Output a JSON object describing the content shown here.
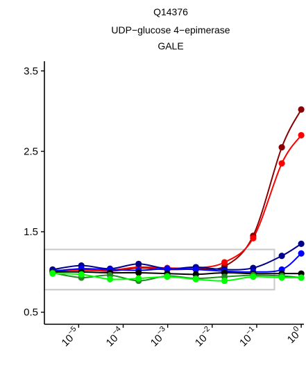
{
  "chart_data": {
    "type": "line",
    "title_lines": [
      "Q14376",
      "UDP−glucose 4−epimerase",
      "GALE"
    ],
    "xlabel": "",
    "ylabel": "",
    "x_scale": "log10",
    "xlim": [
      1.7e-06,
      1.15
    ],
    "ylim": [
      0.35,
      3.62
    ],
    "y_ticks": [
      0.5,
      1.5,
      2.5,
      3.5
    ],
    "y_tick_labels": [
      "0.5",
      "1.5",
      "2.5",
      "3.5"
    ],
    "x_ticks": [
      1e-05,
      0.0001,
      0.001,
      0.01,
      0.1,
      1
    ],
    "x_tick_labels": [
      {
        "base": "10",
        "exp": "−5"
      },
      {
        "base": "10",
        "exp": "−4"
      },
      {
        "base": "10",
        "exp": "−3"
      },
      {
        "base": "10",
        "exp": "−2"
      },
      {
        "base": "10",
        "exp": "−1"
      },
      {
        "base": "10",
        "exp": "0"
      }
    ],
    "grid": false,
    "legend": "none",
    "reference_box": {
      "x": [
        1.7e-06,
        0.25
      ],
      "y": [
        0.78,
        1.28
      ],
      "color": "#c8c8c8"
    },
    "x": [
      2.6e-06,
      1.15e-05,
      5.06e-05,
      0.000222,
      0.000977,
      0.0043,
      0.0189,
      0.0833,
      0.366,
      1.0
    ],
    "series": [
      {
        "color": "#8b0000",
        "values": [
          1.0,
          1.03,
          1.01,
          1.05,
          1.03,
          1.04,
          1.07,
          1.45,
          2.55,
          3.02
        ]
      },
      {
        "color": "#ff0000",
        "values": [
          1.02,
          1.02,
          1.02,
          1.06,
          1.05,
          1.05,
          1.12,
          1.42,
          2.35,
          2.7
        ]
      },
      {
        "color": "#00008b",
        "values": [
          1.03,
          1.08,
          1.04,
          1.1,
          1.04,
          1.06,
          1.03,
          1.05,
          1.2,
          1.35
        ]
      },
      {
        "color": "#0000ff",
        "values": [
          1.01,
          1.04,
          1.03,
          1.02,
          1.04,
          1.03,
          1.01,
          1.0,
          1.03,
          1.23
        ]
      },
      {
        "color": "#000000",
        "values": [
          1.0,
          1.0,
          0.99,
          0.99,
          0.98,
          0.97,
          0.99,
          0.98,
          0.98,
          0.98
        ]
      },
      {
        "color": "#228b22",
        "values": [
          0.99,
          0.93,
          0.96,
          0.89,
          0.95,
          0.92,
          0.94,
          0.96,
          0.95,
          0.93
        ]
      },
      {
        "color": "#00ff00",
        "values": [
          0.98,
          0.97,
          0.91,
          0.92,
          0.94,
          0.91,
          0.89,
          0.94,
          0.93,
          0.93
        ]
      }
    ]
  }
}
